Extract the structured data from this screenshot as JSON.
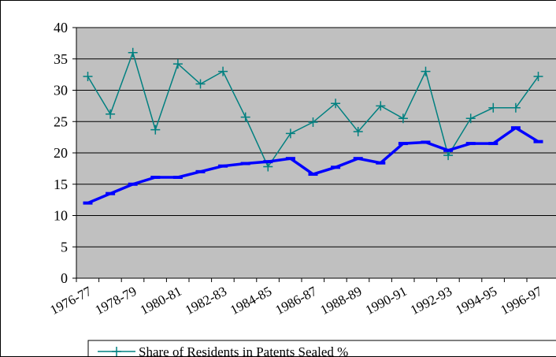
{
  "chart_data": {
    "type": "line",
    "categories": [
      "1976-77",
      null,
      "1978-79",
      null,
      "1980-81",
      null,
      "1982-83",
      null,
      "1984-85",
      null,
      "1986-87",
      null,
      "1988-89",
      null,
      "1990-91",
      null,
      "1992-93",
      null,
      "1994-95",
      null,
      "1996-97"
    ],
    "series": [
      {
        "name": "Share of Residents in Patents Sealed %",
        "color": "#008080",
        "marker": "plus",
        "values": [
          32.2,
          26.2,
          36,
          23.7,
          34.2,
          31,
          33,
          25.7,
          17.8,
          23.1,
          24.9,
          27.9,
          23.4,
          27.5,
          25.5,
          33,
          19.6,
          25.5,
          27.2,
          27.2,
          32.2
        ]
      },
      {
        "color": "#0000ff",
        "marker": "dash",
        "values": [
          12,
          13.5,
          15,
          16.1,
          16.1,
          17,
          17.9,
          18.3,
          18.6,
          19.1,
          16.6,
          17.7,
          19.1,
          18.4,
          21.5,
          21.7,
          20.4,
          21.5,
          21.5,
          24,
          21.8
        ]
      }
    ],
    "ylim": [
      0,
      40
    ],
    "yticks": [
      0,
      5,
      10,
      15,
      20,
      25,
      30,
      35,
      40
    ],
    "grid": true,
    "legend": "bottom"
  }
}
